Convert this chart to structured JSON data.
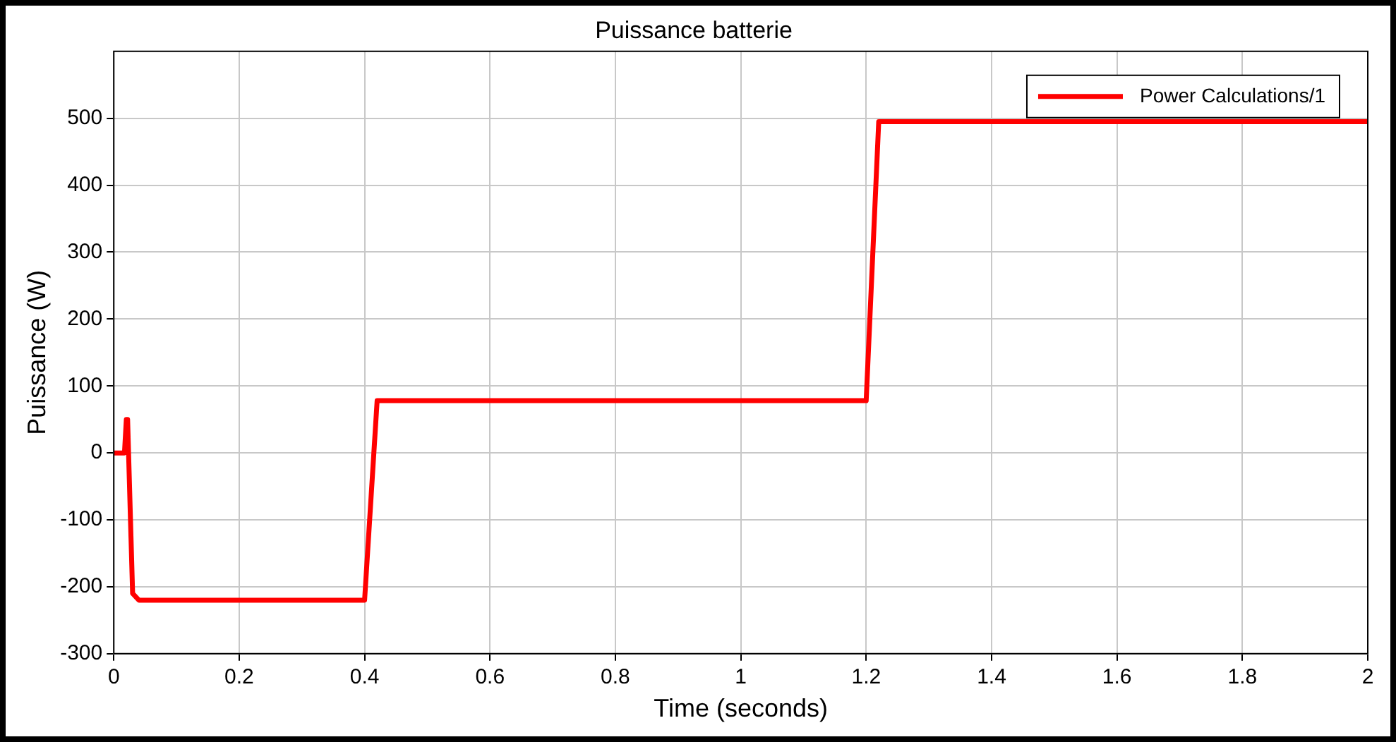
{
  "chart_data": {
    "type": "line",
    "title": "Puissance batterie",
    "xlabel": "Time (seconds)",
    "ylabel": "Puissance (W)",
    "xlim": [
      0,
      2
    ],
    "xticks": [
      0,
      0.2,
      0.4,
      0.6,
      0.8,
      1,
      1.2,
      1.4,
      1.6,
      1.8,
      2
    ],
    "ylim": [
      -300,
      600
    ],
    "yticks": [
      -300,
      -200,
      -100,
      0,
      100,
      200,
      300,
      400,
      500
    ],
    "grid": true,
    "legend": "top right",
    "marker": "none",
    "line_style": "solid",
    "series": [
      {
        "name": "Power Calculations/1",
        "color": "#ff0000",
        "x": [
          0,
          0.017,
          0.02,
          0.022,
          0.03,
          0.04,
          0.1,
          0.2,
          0.3,
          0.4,
          0.42,
          0.6,
          0.8,
          1.0,
          1.2,
          1.22,
          1.4,
          1.6,
          1.8,
          2
        ],
        "values": [
          0,
          0,
          50,
          50,
          -210,
          -220,
          -220,
          -220,
          -220,
          -220,
          78,
          78,
          78,
          78,
          78,
          495,
          495,
          495,
          495,
          495
        ]
      }
    ]
  }
}
